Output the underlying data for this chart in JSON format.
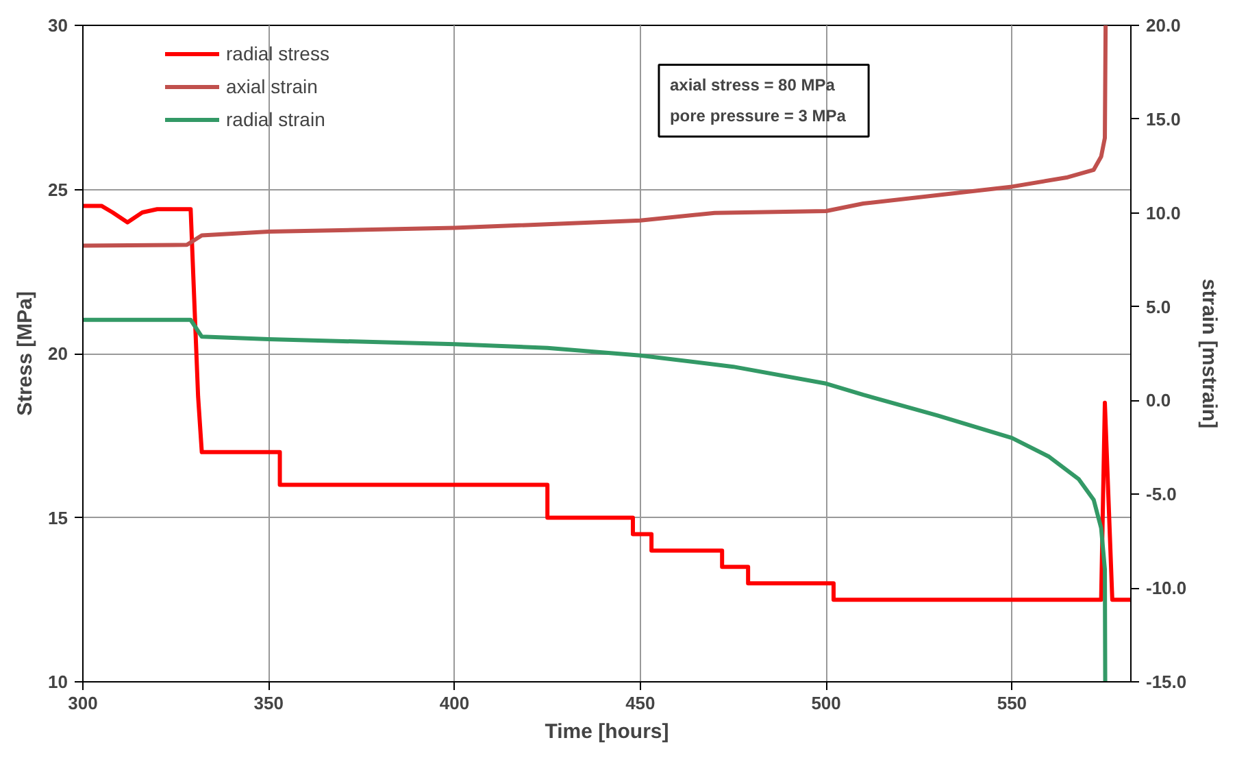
{
  "chart_data": {
    "type": "line",
    "xlabel": "Time [hours]",
    "ylabel": "Stress [MPa]",
    "y2label": "strain [mstrain]",
    "xlim": [
      300,
      582
    ],
    "xticks": [
      300,
      350,
      400,
      450,
      500,
      550
    ],
    "ylim": [
      10,
      30
    ],
    "yticks": [
      10,
      15,
      20,
      25,
      30
    ],
    "y2lim": [
      -15,
      20
    ],
    "y2ticks": [
      {
        "value": -15,
        "label": "-15.0"
      },
      {
        "value": -10,
        "label": "-10.0"
      },
      {
        "value": -5,
        "label": "-5.0"
      },
      {
        "value": 0,
        "label": "0.0"
      },
      {
        "value": 5,
        "label": "5.0"
      },
      {
        "value": 10,
        "label": "10.0"
      },
      {
        "value": 15,
        "label": "15.0"
      },
      {
        "value": 20,
        "label": "20.0"
      }
    ],
    "grid": true,
    "legend": "top left",
    "marker": "none",
    "line_style": "solid",
    "annotations": [
      "axial stress      = 80 MPa",
      "pore pressure =   3 MPa"
    ],
    "series": [
      {
        "name": "radial stress",
        "color": "#ff0000",
        "x": [
          300,
          305,
          308,
          312,
          316,
          320,
          329,
          331,
          331,
          332,
          353,
          353,
          425,
          425,
          448,
          448,
          453,
          453,
          472,
          472,
          479,
          479,
          502,
          502,
          574,
          575,
          577,
          582
        ],
        "values": [
          24.5,
          24.5,
          24.3,
          24.0,
          24.3,
          24.4,
          24.4,
          18.7,
          18.7,
          17,
          17,
          16,
          16,
          15,
          15,
          14.5,
          14.5,
          14,
          14,
          13.5,
          13.5,
          13,
          13,
          12.5,
          12.5,
          18.5,
          12.5,
          12.5
        ]
      },
      {
        "name": "axial strain",
        "color": "#c0504d",
        "axis": "y2",
        "x": [
          300,
          328,
          332,
          350,
          400,
          450,
          470,
          500,
          510,
          550,
          565,
          572,
          574,
          575,
          575.2
        ],
        "values": [
          8.25,
          8.3,
          8.8,
          9.0,
          9.2,
          9.6,
          10.0,
          10.1,
          10.5,
          11.4,
          11.9,
          12.3,
          13.0,
          14,
          20
        ]
      },
      {
        "name": "radial strain",
        "color": "#339966",
        "axis": "y2",
        "x": [
          300,
          329,
          332,
          350,
          400,
          425,
          450,
          475,
          500,
          510,
          530,
          550,
          560,
          568,
          572,
          574,
          575,
          575.1
        ],
        "values": [
          4.3,
          4.3,
          3.4,
          3.27,
          3.0,
          2.8,
          2.4,
          1.8,
          0.9,
          0.3,
          -0.8,
          -2.0,
          -3.0,
          -4.2,
          -5.3,
          -6.8,
          -9,
          -15
        ]
      }
    ]
  }
}
